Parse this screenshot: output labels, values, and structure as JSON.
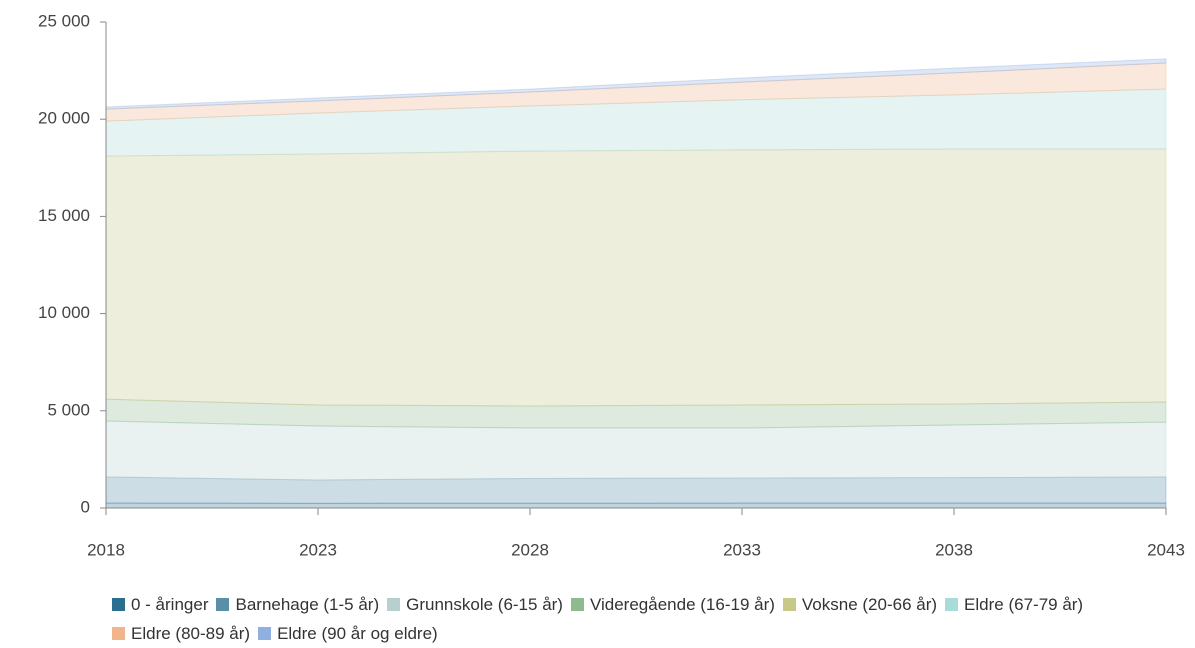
{
  "chart_data": {
    "type": "stacked_area",
    "x": [
      2018,
      2023,
      2028,
      2033,
      2038,
      2043
    ],
    "xlim": [
      2018,
      2043
    ],
    "xticks": [
      2018,
      2023,
      2028,
      2033,
      2038,
      2043
    ],
    "ylim": [
      0,
      25000
    ],
    "yticks": [
      0,
      {
        "value": 5000,
        "label": "5 000"
      },
      {
        "value": 10000,
        "label": "10 000"
      },
      {
        "value": 15000,
        "label": "15 000"
      },
      {
        "value": 20000,
        "label": "20 000"
      },
      {
        "value": 25000,
        "label": "25 000"
      }
    ],
    "legend": "bottom",
    "series": [
      {
        "name": "0 - åringer",
        "color": "#2a6f8f",
        "values": [
          250,
          240,
          245,
          250,
          250,
          250
        ]
      },
      {
        "name": "Barnehage (1-5 år)",
        "color": "#5b8fa8",
        "values": [
          1350,
          1200,
          1275,
          1290,
          1310,
          1350
        ]
      },
      {
        "name": "Grunnskole (6-15 år)",
        "color": "#b8cfd0",
        "values": [
          2875,
          2780,
          2595,
          2575,
          2710,
          2820
        ]
      },
      {
        "name": "Videregående (16-19 år)",
        "color": "#8fba8f",
        "values": [
          1125,
          1080,
          1135,
          1185,
          1080,
          1030
        ]
      },
      {
        "name": "Voksne (20-66 år)",
        "color": "#c8c88a",
        "values": [
          12500,
          12910,
          13110,
          13120,
          13120,
          13020
        ]
      },
      {
        "name": "Eldre (67-79 år)",
        "color": "#a8dcd8",
        "values": [
          1800,
          2110,
          2320,
          2580,
          2780,
          3080
        ]
      },
      {
        "name": "Eldre (80-89 år)",
        "color": "#f2b48a",
        "values": [
          620,
          620,
          720,
          910,
          1130,
          1340
        ]
      },
      {
        "name": "Eldre (90 år og eldre)",
        "color": "#8fb0e0",
        "values": [
          110,
          150,
          150,
          210,
          250,
          210
        ]
      }
    ]
  }
}
